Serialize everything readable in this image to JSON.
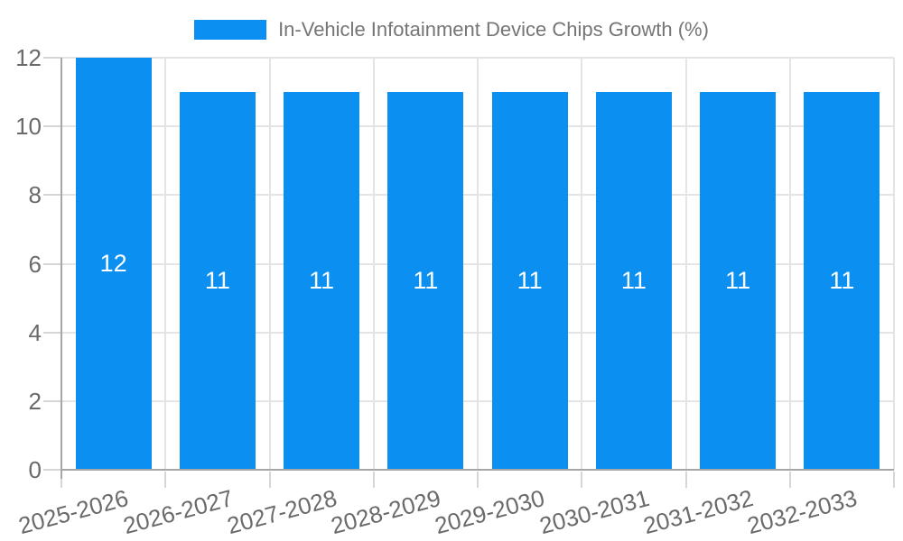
{
  "chart_data": {
    "type": "bar",
    "title": "In-Vehicle Infotainment Device Chips Growth (%)",
    "legend": {
      "position": "top",
      "items": [
        {
          "label": "In-Vehicle Infotainment Device Chips Growth (%)",
          "color": "#0b90f1"
        }
      ]
    },
    "categories": [
      "2025-2026",
      "2026-2027",
      "2027-2028",
      "2028-2029",
      "2029-2030",
      "2030-2031",
      "2031-2032",
      "2032-2033"
    ],
    "values": [
      12,
      11,
      11,
      11,
      11,
      11,
      11,
      11
    ],
    "xlabel": "",
    "ylabel": "",
    "ylim": [
      0,
      12
    ],
    "yticks": [
      0,
      2,
      4,
      6,
      8,
      10,
      12
    ],
    "grid": true,
    "x_tick_rotation_deg": -15,
    "colors": {
      "bar": "#0b90f1",
      "value_label": "#ffffff",
      "title_text": "#757575",
      "tick_text": "#6a6a6a",
      "gridline": "#e4e4e4",
      "axis_line": "#a6a6a6",
      "tick_mark": "#d6d6d6",
      "background": "#ffffff"
    }
  }
}
